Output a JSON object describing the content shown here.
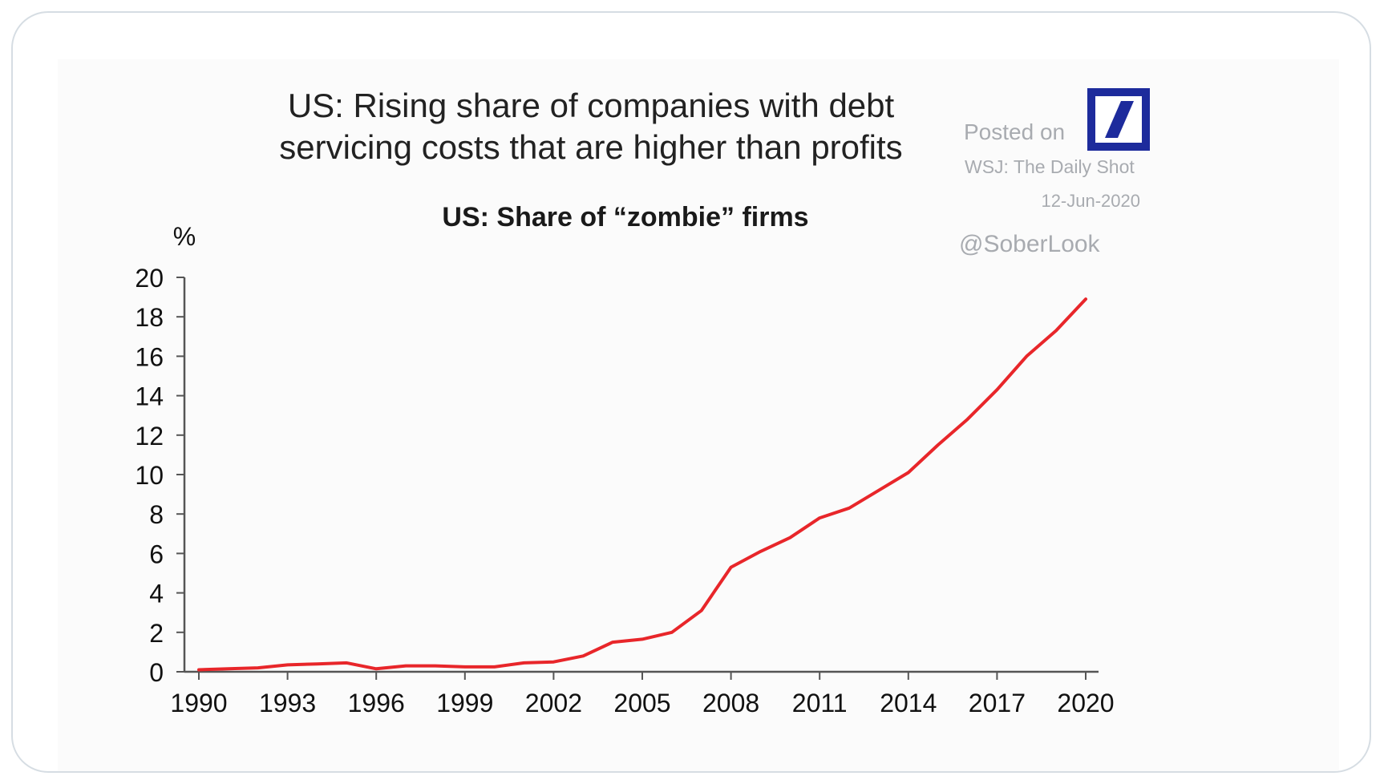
{
  "chart_data": {
    "type": "line",
    "title_lines": [
      "US: Rising share of companies with debt",
      "servicing costs that are higher than profits"
    ],
    "subtitle": "US: Share of “zombie” firms",
    "ylabel": "%",
    "xlabel": "",
    "ylim": [
      0,
      20
    ],
    "xlim": [
      1990,
      2020
    ],
    "yticks": [
      "0",
      "2",
      "4",
      "6",
      "8",
      "10",
      "12",
      "14",
      "16",
      "18",
      "20"
    ],
    "xticks": [
      "1990",
      "1993",
      "1996",
      "1999",
      "2002",
      "2005",
      "2008",
      "2011",
      "2014",
      "2017",
      "2020"
    ],
    "grid": false,
    "series": [
      {
        "name": "Share of zombie firms",
        "color": "#e8262a",
        "x": [
          1990,
          1991,
          1992,
          1993,
          1994,
          1995,
          1996,
          1997,
          1998,
          1999,
          2000,
          2001,
          2002,
          2003,
          2004,
          2005,
          2006,
          2007,
          2008,
          2009,
          2010,
          2011,
          2012,
          2013,
          2014,
          2015,
          2016,
          2017,
          2018,
          2019,
          2020
        ],
        "values": [
          0.1,
          0.15,
          0.2,
          0.35,
          0.4,
          0.45,
          0.15,
          0.3,
          0.3,
          0.25,
          0.25,
          0.45,
          0.5,
          0.8,
          1.5,
          1.65,
          2.0,
          3.1,
          5.3,
          6.1,
          6.8,
          7.8,
          8.3,
          9.2,
          10.1,
          11.5,
          12.8,
          14.3,
          16.0,
          17.3,
          18.9
        ]
      }
    ]
  },
  "attribution": {
    "posted_on": "Posted on",
    "source": "WSJ: The Daily Shot",
    "date": "12-Jun-2020",
    "handle": "@SoberLook",
    "logo_color": "#1d2b9c"
  }
}
